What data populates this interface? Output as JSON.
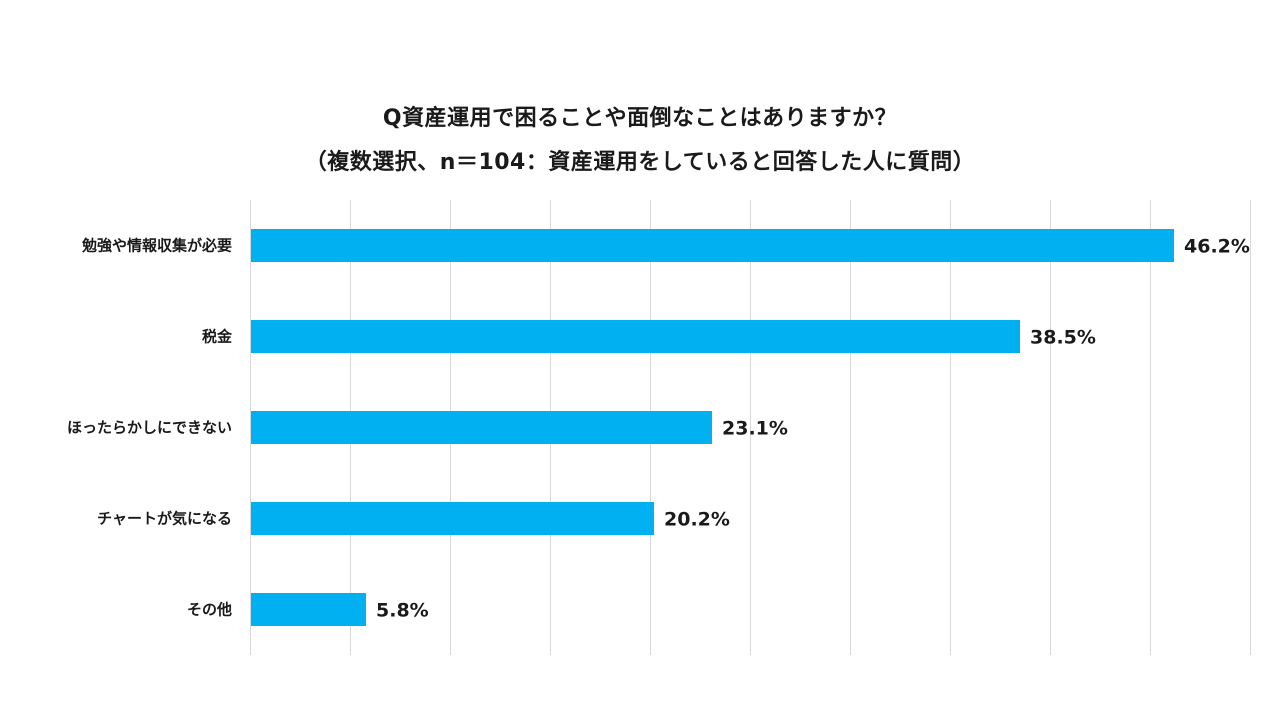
{
  "chart_data": {
    "type": "bar",
    "orientation": "horizontal",
    "title": "Q資産運用で困ることや面倒なことはありますか？",
    "subtitle": "（複数選択、n＝104：資産運用をしていると回答した人に質問）",
    "categories": [
      "勉強や情報収集が必要",
      "税金",
      "ほったらかしにできない",
      "チャートが気になる",
      "その他"
    ],
    "values": [
      46.2,
      38.5,
      23.1,
      20.2,
      5.8
    ],
    "value_labels": [
      "46.2%",
      "38.5%",
      "23.1%",
      "20.2%",
      "5.8%"
    ],
    "xlim": [
      0,
      50
    ],
    "grid_step": 5,
    "grid": true,
    "xlabel": "",
    "ylabel": "",
    "bar_color": "#00B0F0"
  }
}
